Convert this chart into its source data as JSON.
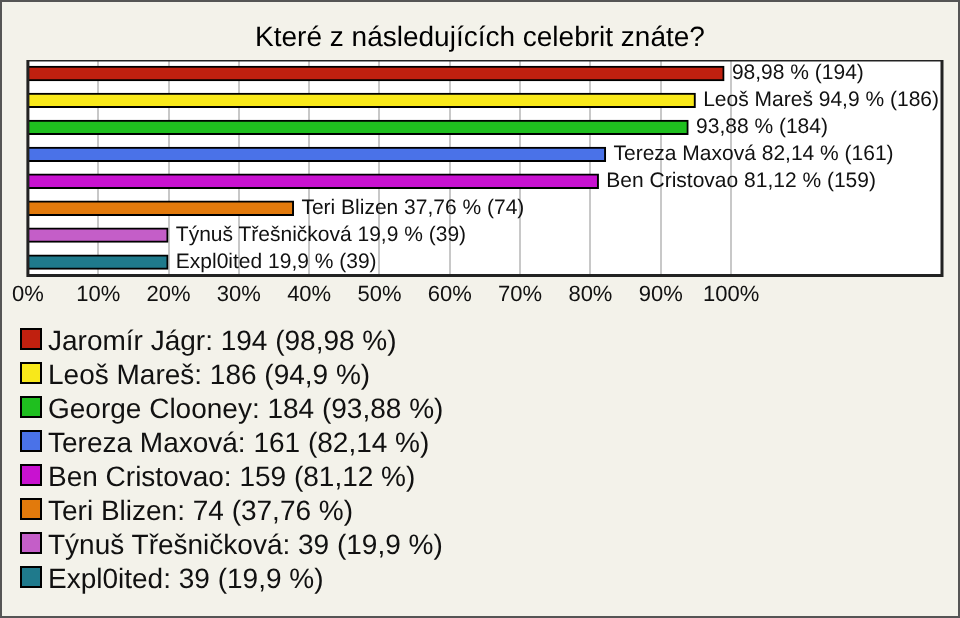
{
  "chart_data": {
    "type": "bar",
    "orientation": "horizontal",
    "title": "Které z následujících celebrit znáte?",
    "categories": [
      null,
      null,
      null,
      null,
      null,
      null,
      null,
      null
    ],
    "series": [
      {
        "name": "Jaromír Jágr: 194 (98,98 %)",
        "color": "#c0200f",
        "values": [
          98.98,
          null,
          null,
          null,
          null,
          null,
          null,
          null
        ],
        "value_labels": [
          "98,98 % (194)",
          null,
          null,
          null,
          null,
          null,
          null,
          null
        ]
      },
      {
        "name": "Leoš Mareš: 186 (94,9 %)",
        "color": "#f8e81a",
        "values": [
          null,
          94.9,
          null,
          null,
          null,
          null,
          null,
          null
        ],
        "value_labels": [
          null,
          "Leoš Mareš 94,9 % (186)",
          null,
          null,
          null,
          null,
          null,
          null
        ]
      },
      {
        "name": "George Clooney: 184 (93,88 %)",
        "color": "#1fbf1f",
        "values": [
          null,
          null,
          93.88,
          null,
          null,
          null,
          null,
          null
        ],
        "value_labels": [
          null,
          null,
          "93,88 % (184)",
          null,
          null,
          null,
          null,
          null
        ]
      },
      {
        "name": "Tereza Maxová: 161 (82,14 %)",
        "color": "#4a72e8",
        "values": [
          null,
          null,
          null,
          82.14,
          null,
          null,
          null,
          null
        ],
        "value_labels": [
          null,
          null,
          null,
          "Tereza Maxová 82,14 % (161)",
          null,
          null,
          null,
          null
        ]
      },
      {
        "name": "Ben Cristovao: 159 (81,12 %)",
        "color": "#c812d0",
        "values": [
          null,
          null,
          null,
          null,
          81.12,
          null,
          null,
          null
        ],
        "value_labels": [
          null,
          null,
          null,
          null,
          "Ben Cristovao 81,12 % (159)",
          null,
          null,
          null
        ]
      },
      {
        "name": "Teri Blizen: 74 (37,76 %)",
        "color": "#e27a0c",
        "values": [
          null,
          null,
          null,
          null,
          null,
          37.76,
          null,
          null
        ],
        "value_labels": [
          null,
          null,
          null,
          null,
          null,
          "Teri Blizen 37,76 % (74)",
          null,
          null
        ]
      },
      {
        "name": "Týnuš Třešničková: 39 (19,9 %)",
        "color": "#c45ec8",
        "values": [
          null,
          null,
          null,
          null,
          null,
          null,
          19.9,
          null
        ],
        "value_labels": [
          null,
          null,
          null,
          null,
          null,
          null,
          "Týnuš Třešničková 19,9 % (39)",
          null
        ]
      },
      {
        "name": "Expl0ited: 39 (19,9 %)",
        "color": "#1f7a8c",
        "values": [
          null,
          null,
          null,
          null,
          null,
          null,
          null,
          19.9
        ],
        "value_labels": [
          null,
          null,
          null,
          null,
          null,
          null,
          null,
          "Expl0ited 19,9 % (39)"
        ]
      }
    ],
    "xlim": [
      0,
      130
    ],
    "xticks": [
      {
        "value": 0,
        "label": "0%"
      },
      {
        "value": 10,
        "label": "10%"
      },
      {
        "value": 20,
        "label": "20%"
      },
      {
        "value": 30,
        "label": "30%"
      },
      {
        "value": 40,
        "label": "40%"
      },
      {
        "value": 50,
        "label": "50%"
      },
      {
        "value": 60,
        "label": "60%"
      },
      {
        "value": 70,
        "label": "70%"
      },
      {
        "value": 80,
        "label": "80%"
      },
      {
        "value": 90,
        "label": "90%"
      },
      {
        "value": 100,
        "label": "100%"
      }
    ],
    "grid": "x",
    "legend": "bottom",
    "tick_labels": "x"
  }
}
